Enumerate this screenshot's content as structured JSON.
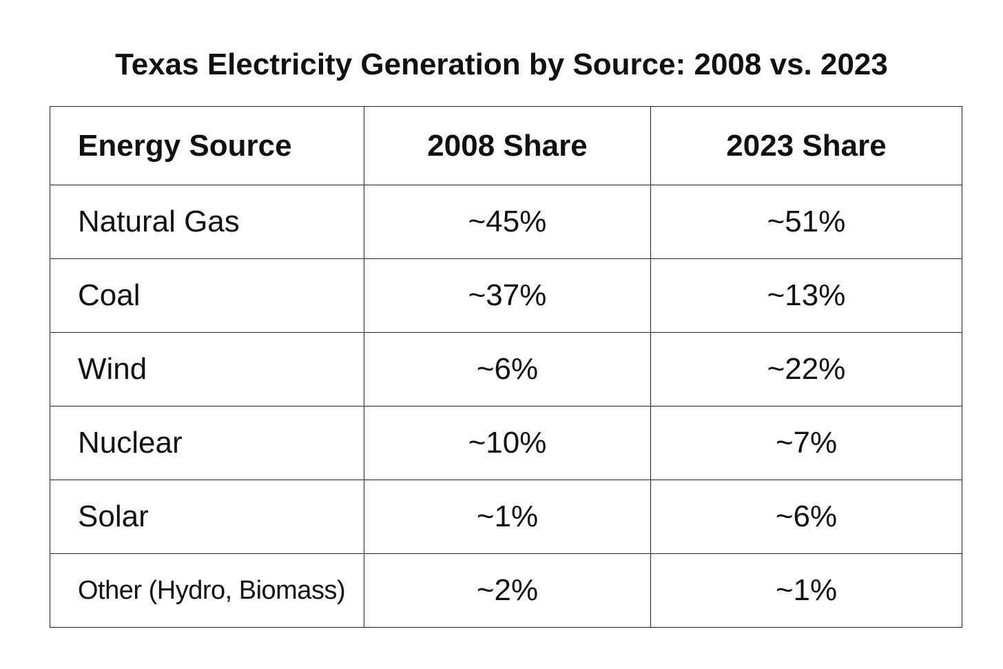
{
  "chart_data": {
    "type": "table",
    "title": "Texas Electricity Generation by Source: 2008 vs. 2023",
    "columns": [
      "Energy Source",
      "2008 Share",
      "2023 Share"
    ],
    "rows": [
      {
        "source": "Natural Gas",
        "share_2008": "~45%",
        "share_2023": "~51%"
      },
      {
        "source": "Coal",
        "share_2008": "~37%",
        "share_2023": "~13%"
      },
      {
        "source": "Wind",
        "share_2008": "~6%",
        "share_2023": "~22%"
      },
      {
        "source": "Nuclear",
        "share_2008": "~10%",
        "share_2023": "~7%"
      },
      {
        "source": "Solar",
        "share_2008": "~1%",
        "share_2023": "~6%"
      },
      {
        "source": "Other (Hydro, Biomass)",
        "share_2008": "~2%",
        "share_2023": "~1%"
      }
    ]
  }
}
